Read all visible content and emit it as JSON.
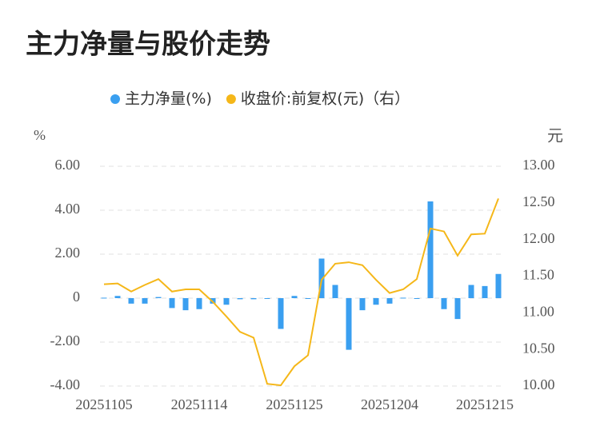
{
  "chart_data": {
    "type": "bar_line",
    "title": "主力净量与股价走势",
    "y_label": "%",
    "y2_label": "元",
    "categories": [
      "20251105",
      null,
      null,
      null,
      null,
      null,
      null,
      "20251114",
      null,
      null,
      null,
      null,
      null,
      null,
      "20251125",
      null,
      null,
      null,
      null,
      null,
      null,
      "20251204",
      null,
      null,
      null,
      null,
      null,
      null,
      "20251215",
      null
    ],
    "series": [
      {
        "name": "主力净量(%)",
        "color": "#3a9ff0",
        "kind": "bar",
        "values": [
          0.02,
          0.1,
          -0.25,
          -0.25,
          0.05,
          -0.45,
          -0.55,
          -0.5,
          -0.25,
          -0.3,
          -0.05,
          -0.05,
          -0.02,
          -1.4,
          0.1,
          -0.02,
          1.8,
          0.6,
          -2.35,
          -0.55,
          -0.3,
          -0.25,
          0.02,
          -0.02,
          4.4,
          -0.5,
          -0.95,
          0.6,
          0.55,
          1.1
        ]
      },
      {
        "name": "收盘价:前复权(元)（右）",
        "color": "#f5b719",
        "kind": "line",
        "axis": "y2",
        "values": [
          11.39,
          11.4,
          11.29,
          11.38,
          11.46,
          11.29,
          11.32,
          11.32,
          11.15,
          10.95,
          10.74,
          10.66,
          10.03,
          10.01,
          10.27,
          10.42,
          11.45,
          11.67,
          11.69,
          11.65,
          11.45,
          11.27,
          11.32,
          11.46,
          12.15,
          12.11,
          11.78,
          12.07,
          12.08,
          12.56
        ]
      }
    ],
    "ylim": [
      -4,
      6
    ],
    "yticks": [
      {
        "value": -4,
        "label": "-4.00"
      },
      {
        "value": -2,
        "label": "-2.00"
      },
      0,
      {
        "value": 2,
        "label": "2.00"
      },
      {
        "value": 4,
        "label": "4.00"
      },
      {
        "value": 6,
        "label": "6.00"
      }
    ],
    "y2lim": [
      10,
      13
    ],
    "y2ticks": [
      {
        "value": 10,
        "label": "10.00"
      },
      {
        "value": 10.5,
        "label": "10.50"
      },
      {
        "value": 11,
        "label": "11.00"
      },
      {
        "value": 11.5,
        "label": "11.50"
      },
      {
        "value": 12,
        "label": "12.00"
      },
      {
        "value": 12.5,
        "label": "12.50"
      },
      {
        "value": 13,
        "label": "13.00"
      }
    ],
    "grid": true,
    "legend": "top"
  }
}
